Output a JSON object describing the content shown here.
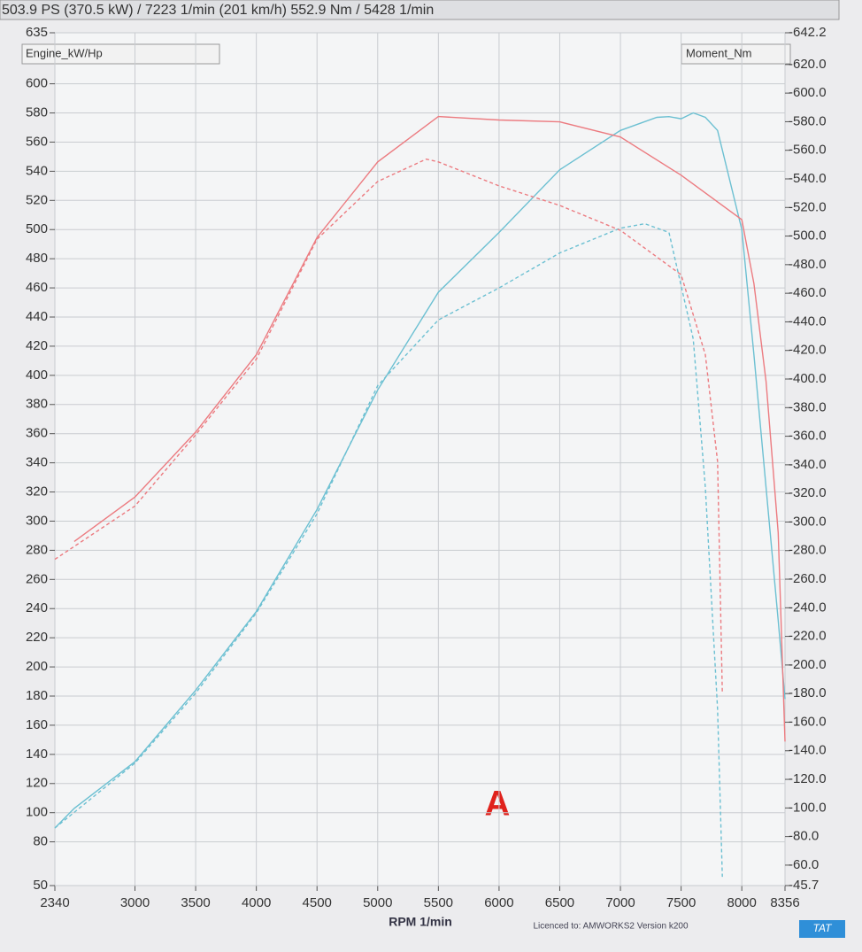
{
  "chart_data": {
    "type": "line",
    "header": "503.9 PS  (370.5 kW) / 7223 1/min (201 km/h)     552.9 Nm / 5428 1/min",
    "y_label": "Engine_kW/Hp",
    "y2_label": "Moment_Nm",
    "x_label": "RPM  1/min",
    "footer": "Licenced to: AMWORKS2   Version k200",
    "button": "TAT",
    "annotation": "A",
    "grid": true,
    "xlim": [
      2340,
      8356
    ],
    "xticks": [
      2340,
      3000,
      3500,
      4000,
      4500,
      5000,
      5500,
      6000,
      6500,
      7000,
      7500,
      8000,
      8356
    ],
    "ylim": [
      50,
      635
    ],
    "yticks": [
      50,
      80,
      100,
      120,
      140,
      160,
      180,
      200,
      220,
      240,
      260,
      280,
      300,
      320,
      340,
      360,
      380,
      400,
      420,
      440,
      460,
      480,
      500,
      520,
      540,
      560,
      580,
      600,
      635
    ],
    "y2lim": [
      -45.7,
      -642.2
    ],
    "y2ticks": [
      -45.7,
      {
        "value": -60,
        "label": "-60.0"
      },
      {
        "value": -80,
        "label": "-80.0"
      },
      {
        "value": -100,
        "label": "-100.0"
      },
      {
        "value": -120,
        "label": "-120.0"
      },
      {
        "value": -140,
        "label": "-140.0"
      },
      {
        "value": -160,
        "label": "-160.0"
      },
      {
        "value": -180,
        "label": "-180.0"
      },
      {
        "value": -200,
        "label": "-200.0"
      },
      {
        "value": -220,
        "label": "-220.0"
      },
      {
        "value": -240,
        "label": "-240.0"
      },
      {
        "value": -260,
        "label": "-260.0"
      },
      {
        "value": -280,
        "label": "-280.0"
      },
      {
        "value": -300,
        "label": "-300.0"
      },
      {
        "value": -320,
        "label": "-320.0"
      },
      {
        "value": -340,
        "label": "-340.0"
      },
      {
        "value": -360,
        "label": "-360.0"
      },
      {
        "value": -380,
        "label": "-380.0"
      },
      {
        "value": -400,
        "label": "-400.0"
      },
      {
        "value": -420,
        "label": "-420.0"
      },
      {
        "value": -440,
        "label": "-440.0"
      },
      {
        "value": -460,
        "label": "-460.0"
      },
      {
        "value": -480,
        "label": "-480.0"
      },
      {
        "value": -500,
        "label": "-500.0"
      },
      {
        "value": -520,
        "label": "-520.0"
      },
      {
        "value": -540,
        "label": "-540.0"
      },
      {
        "value": -560,
        "label": "-560.0"
      },
      {
        "value": -580,
        "label": "-580.0"
      },
      {
        "value": -600,
        "label": "-600.0"
      },
      {
        "value": -620,
        "label": "-620.0"
      },
      -642.2
    ],
    "series": [
      {
        "color": "#6cc0d2",
        "style": "solid",
        "axis": "y",
        "x": [
          2340,
          2500,
          3000,
          3500,
          4000,
          4500,
          5000,
          5500,
          6000,
          6500,
          7000,
          7300,
          7400,
          7500,
          7600,
          7700,
          7800,
          8000,
          8100,
          8200,
          8300,
          8356
        ],
        "values": [
          89.5,
          103,
          135,
          184,
          238,
          308,
          390,
          457,
          498,
          541,
          568,
          577,
          577.5,
          576,
          580,
          577,
          568,
          500,
          414,
          323,
          232,
          178
        ]
      },
      {
        "color": "#6cc0d2",
        "style": "dashed",
        "axis": "y",
        "x": [
          2340,
          3000,
          3500,
          4000,
          4500,
          5000,
          5500,
          6000,
          6500,
          7000,
          7200,
          7400,
          7600,
          7700,
          7800,
          7840
        ],
        "values": [
          89.5,
          134,
          182,
          237,
          305,
          393,
          438,
          460,
          484,
          501,
          504,
          498,
          425,
          323,
          171,
          56
        ]
      },
      {
        "color": "#ec7b80",
        "style": "solid",
        "axis": "y2",
        "x": [
          2500,
          3000,
          3500,
          4000,
          4500,
          5000,
          5500,
          6000,
          6500,
          7000,
          7500,
          8000,
          8100,
          8200,
          8300,
          8356
        ],
        "values": [
          -286.4,
          -317.5,
          -362.9,
          -417,
          -499,
          -551.9,
          -583.6,
          -581.2,
          -579.9,
          -569.3,
          -542.6,
          -511.5,
          -466.7,
          -398.3,
          -292.6,
          -146.4
        ]
      },
      {
        "color": "#ec7b80",
        "style": "dashed",
        "axis": "y2",
        "x": [
          2340,
          3000,
          3500,
          4000,
          4500,
          5000,
          5400,
          5500,
          6000,
          6500,
          7000,
          7500,
          7700,
          7800,
          7840
        ],
        "values": [
          -273.9,
          -311.2,
          -361,
          -413.9,
          -497.8,
          -538.2,
          -553.8,
          -551.9,
          -535.1,
          -521.4,
          -504,
          -473,
          -417,
          -342.3,
          -180
        ]
      }
    ]
  }
}
